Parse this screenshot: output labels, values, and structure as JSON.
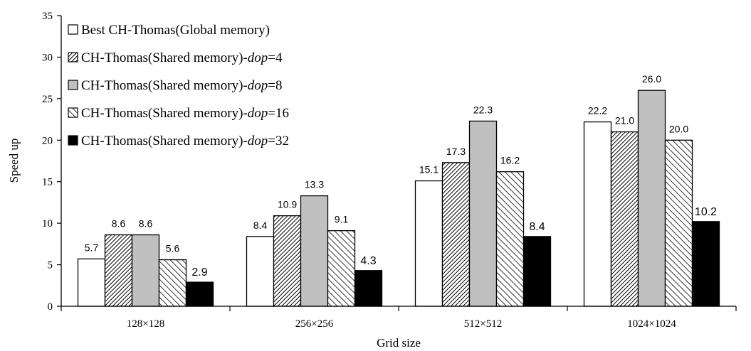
{
  "chart_data": {
    "type": "bar",
    "categories": [
      "128×128",
      "256×256",
      "512×512",
      "1024×1024"
    ],
    "series": [
      {
        "name": "Best CH-Thomas(Global memory)",
        "values": [
          5.7,
          8.4,
          15.1,
          22.2
        ],
        "labels": [
          "5.7",
          "8.4",
          "15.1",
          "22.2"
        ],
        "pattern": "white"
      },
      {
        "name": "CH-Thomas(Shared memory)-dop=4",
        "name_prefix": "CH-Thomas(Shared memory)-",
        "name_italic": "dop",
        "name_suffix": "=4",
        "values": [
          8.6,
          10.9,
          17.3,
          21.0
        ],
        "labels": [
          "8.6",
          "10.9",
          "17.3",
          "21.0"
        ],
        "pattern": "dense-diagonal"
      },
      {
        "name": "CH-Thomas(Shared memory)-dop=8",
        "name_prefix": "CH-Thomas(Shared memory)-",
        "name_italic": "dop",
        "name_suffix": "=8",
        "values": [
          8.6,
          13.3,
          22.3,
          26.0
        ],
        "labels": [
          "8.6",
          "13.3",
          "22.3",
          "26.0"
        ],
        "pattern": "gray"
      },
      {
        "name": "CH-Thomas(Shared memory)-dop=16",
        "name_prefix": "CH-Thomas(Shared memory)-",
        "name_italic": "dop",
        "name_suffix": "=16",
        "values": [
          5.6,
          9.1,
          16.2,
          20.0
        ],
        "labels": [
          "5.6",
          "9.1",
          "16.2",
          "20.0"
        ],
        "pattern": "wide-diagonal"
      },
      {
        "name": "CH-Thomas(Shared memory)-dop=32",
        "name_prefix": "CH-Thomas(Shared memory)-",
        "name_italic": "dop",
        "name_suffix": "=32",
        "values": [
          2.9,
          4.3,
          8.4,
          10.2
        ],
        "labels": [
          "2.9",
          "4.3",
          "8.4",
          "10.2"
        ],
        "pattern": "black"
      }
    ],
    "first_series_name_plain": "Best CH-Thomas(Global memory)",
    "xlabel": "Grid size",
    "ylabel": "Speed up",
    "ylim": [
      0,
      35
    ],
    "yticks": [
      0,
      5,
      10,
      15,
      20,
      25,
      30,
      35
    ],
    "grid": false,
    "legend_position": "top-left, inside plot"
  }
}
